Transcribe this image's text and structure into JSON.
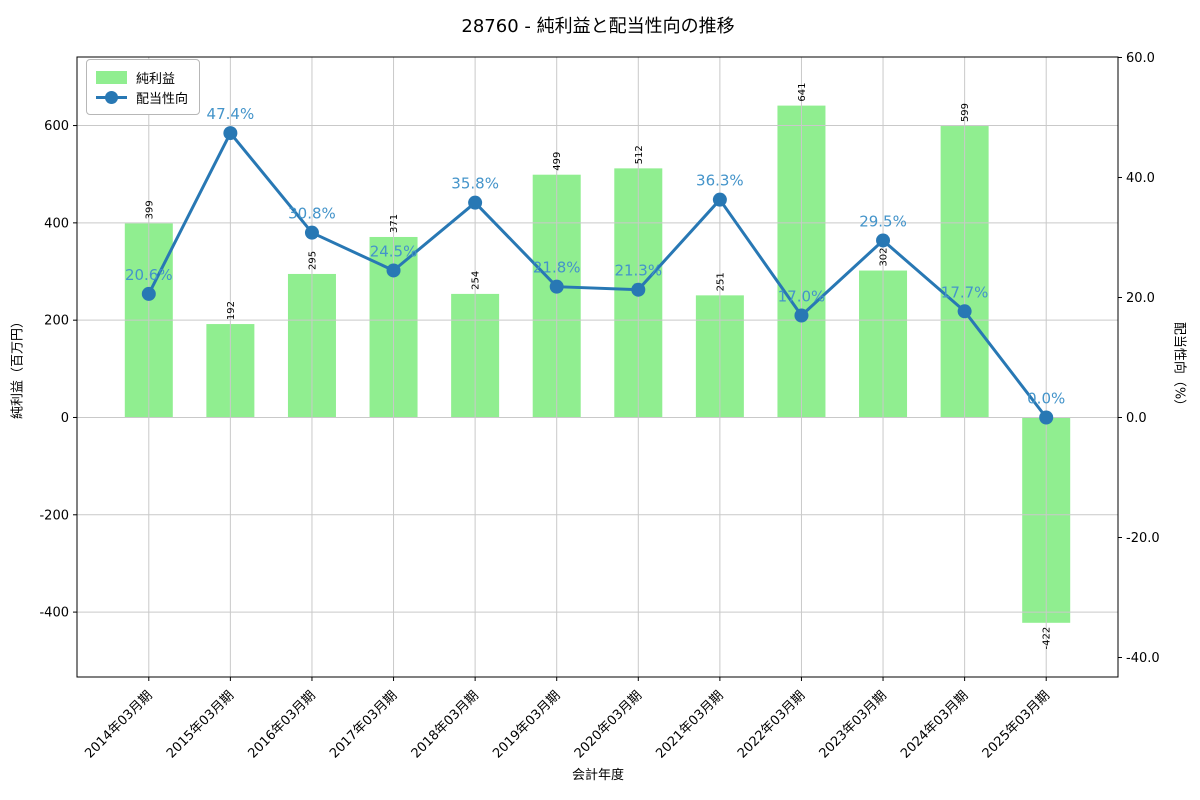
{
  "chart_data": {
    "type": "bar+line",
    "title": "28760 - 純利益と配当性向の推移",
    "xlabel": "会計年度",
    "ylabel_left": "純利益（百万円）",
    "ylabel_right": "配当性向（%）",
    "categories": [
      "2014年03月期",
      "2015年03月期",
      "2016年03月期",
      "2017年03月期",
      "2018年03月期",
      "2019年03月期",
      "2020年03月期",
      "2021年03月期",
      "2022年03月期",
      "2023年03月期",
      "2024年03月期",
      "2025年03月期"
    ],
    "series": [
      {
        "name": "純利益",
        "type": "bar",
        "axis": "left",
        "color": "#90ee90",
        "values": [
          399,
          192,
          295,
          371,
          254,
          499,
          512,
          251,
          641,
          302,
          599,
          -422
        ],
        "labels": [
          "399",
          "192",
          "295",
          "371",
          "254",
          "499",
          "512",
          "251",
          "641",
          "302",
          "599",
          "-422"
        ]
      },
      {
        "name": "配当性向",
        "type": "line",
        "axis": "right",
        "color": "#2878b4",
        "label_color": "#4494ca",
        "marker": "circle",
        "values": [
          20.6,
          47.4,
          30.8,
          24.5,
          35.8,
          21.8,
          21.3,
          36.3,
          17.0,
          29.5,
          17.7,
          0.0
        ],
        "labels": [
          "20.6%",
          "47.4%",
          "30.8%",
          "24.5%",
          "35.8%",
          "21.8%",
          "21.3%",
          "36.3%",
          "17.0%",
          "29.5%",
          "17.7%",
          "0.0%"
        ]
      }
    ],
    "yticks_left": [
      {
        "v": 600,
        "label": "600"
      },
      {
        "v": 400,
        "label": "400"
      },
      {
        "v": 200,
        "label": "200"
      },
      {
        "v": 0,
        "label": "0"
      },
      {
        "v": -200,
        "label": "-200"
      },
      {
        "v": -400,
        "label": "-400"
      }
    ],
    "yticks_right": [
      {
        "v": 60,
        "label": "60.0"
      },
      {
        "v": 40,
        "label": "40.0"
      },
      {
        "v": 20,
        "label": "20.0"
      },
      {
        "v": 0,
        "label": "0.0"
      },
      {
        "v": -20,
        "label": "-20.0"
      },
      {
        "v": -40,
        "label": "-40.0"
      }
    ],
    "ylim_left": [
      -533.4,
      740.9
    ],
    "ylim_right": [
      -43.25,
      60.08
    ],
    "xlim": [
      -0.88,
      11.88
    ],
    "grid": true,
    "grid_color": "#c9c9c9",
    "legend_position": "upper left"
  }
}
